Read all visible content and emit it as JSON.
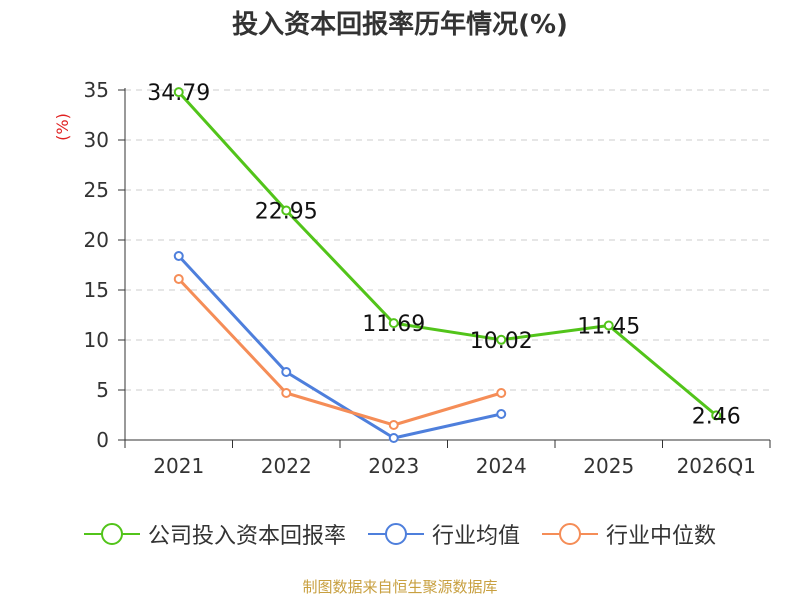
{
  "chart_data": {
    "type": "line",
    "title": "投入资本回报率历年情况(%)",
    "ylabel": "(%)",
    "xlabel": "",
    "ylim": [
      0,
      35
    ],
    "yticks": [
      0,
      5,
      10,
      15,
      20,
      25,
      30,
      35
    ],
    "grid": true,
    "legend_position": "bottom",
    "categories": [
      "2021",
      "2022",
      "2023",
      "2024",
      "2025",
      "2026Q1"
    ],
    "series": [
      {
        "name": "公司投入资本回报率",
        "color": "#52c41a",
        "values": [
          34.79,
          22.95,
          11.69,
          10.02,
          11.45,
          2.46
        ],
        "labels": [
          "34.79",
          "22.95",
          "11.69",
          "10.02",
          "11.45",
          "2.46"
        ]
      },
      {
        "name": "行业均值",
        "color": "#4e7fdc",
        "values": [
          18.4,
          6.8,
          0.2,
          2.6,
          null,
          null
        ]
      },
      {
        "name": "行业中位数",
        "color": "#f58d57",
        "values": [
          16.1,
          4.7,
          1.5,
          4.7,
          null,
          null
        ]
      }
    ]
  },
  "source": "制图数据来自恒生聚源数据库"
}
